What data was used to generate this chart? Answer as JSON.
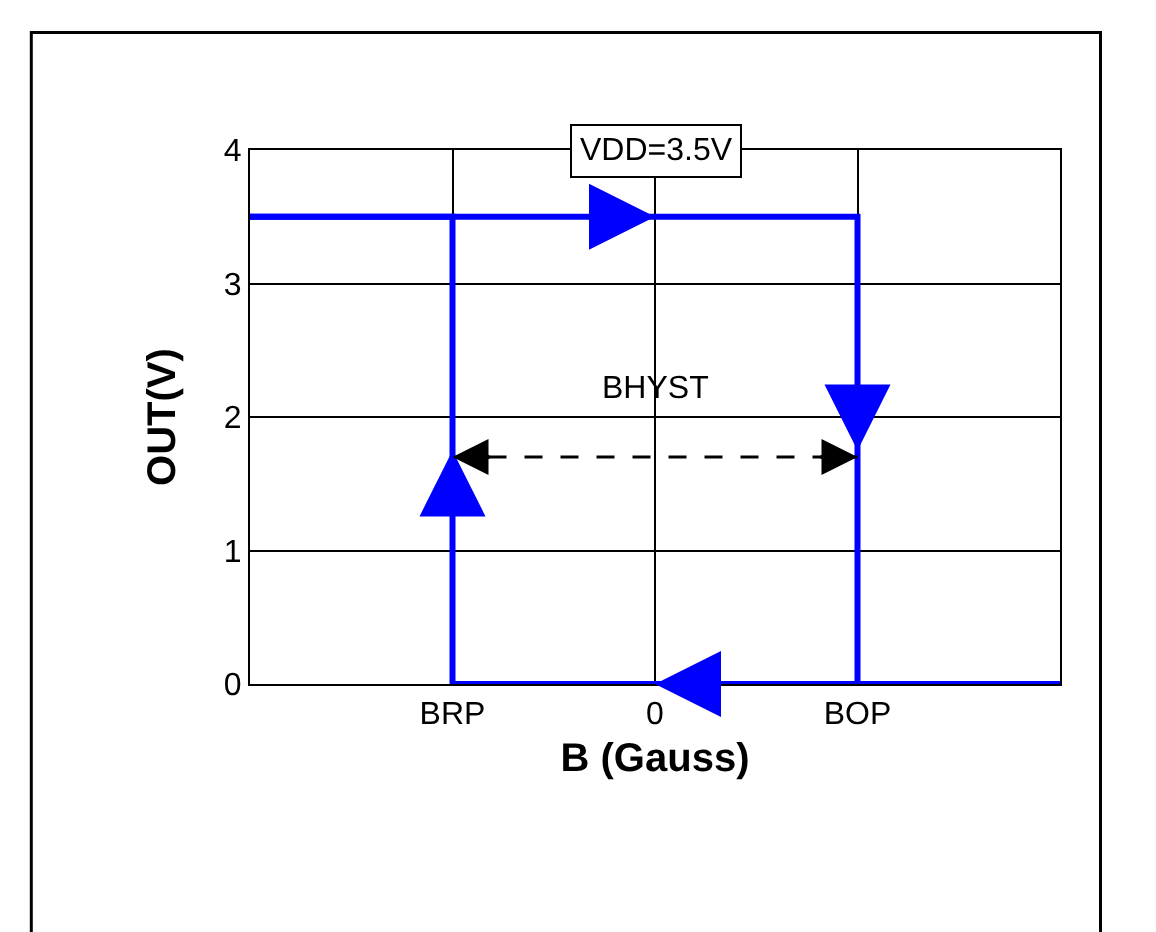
{
  "chart_data": {
    "type": "step",
    "xlabel": "B (Gauss)",
    "ylabel": "OUT(V)",
    "categories": [
      null,
      "BRP",
      "0",
      "BOP",
      null
    ],
    "ylim": [
      0,
      4
    ],
    "yticks": [
      0,
      1,
      2,
      3,
      4
    ],
    "grid": true,
    "marker": "none",
    "line_style": "solid",
    "series": [
      {
        "color": "#0000ff",
        "values": [
          3.5,
          3.5,
          3.5,
          0,
          0
        ]
      },
      {
        "color": "#0000ff",
        "values": [
          3.5,
          0,
          0,
          0,
          0
        ]
      }
    ],
    "annotations": [
      "VDD=3.5V",
      "BHYST"
    ]
  }
}
